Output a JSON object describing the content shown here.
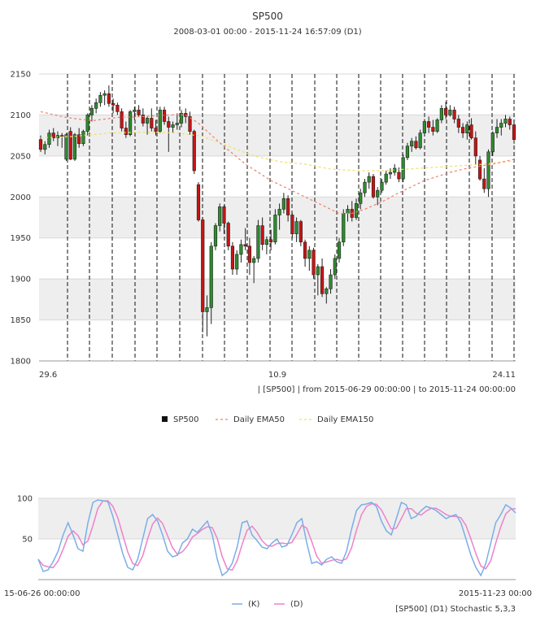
{
  "header": {
    "title": "SP500",
    "subtitle": "2008-03-01 00:00 - 2015-11-24 16:57:09 (D1)"
  },
  "colors": {
    "candle_up": "#2e8b2e",
    "candle_down": "#c81414",
    "ema50": "#f08070",
    "ema150": "#f0e060",
    "stoch_k": "#7aaee8",
    "stoch_d": "#ee82c8",
    "band": "#eeeeee"
  },
  "chart_data": [
    {
      "type": "candlestick",
      "yticks": [
        1800,
        1850,
        1900,
        1950,
        2000,
        2050,
        2100,
        2150
      ],
      "ylim": [
        1800,
        2150
      ],
      "xtick_labels": [
        "29.6",
        "10.9",
        "24.11"
      ],
      "range_note": "| [SP500] | from 2015-06-29 00:00:00 | to 2015-11-24 00:00:00",
      "legend": [
        "SP500",
        "Daily EMA50",
        "Daily EMA150"
      ],
      "ohlc": [
        [
          2070,
          2075,
          2055,
          2058
        ],
        [
          2058,
          2068,
          2052,
          2064
        ],
        [
          2064,
          2082,
          2060,
          2078
        ],
        [
          2078,
          2084,
          2068,
          2072
        ],
        [
          2072,
          2080,
          2062,
          2075
        ],
        [
          2075,
          2078,
          2060,
          2074
        ],
        [
          2046,
          2078,
          2044,
          2076
        ],
        [
          2080,
          2085,
          2045,
          2046
        ],
        [
          2046,
          2078,
          2044,
          2076
        ],
        [
          2076,
          2084,
          2060,
          2065
        ],
        [
          2065,
          2082,
          2062,
          2080
        ],
        [
          2080,
          2102,
          2075,
          2100
        ],
        [
          2100,
          2112,
          2092,
          2108
        ],
        [
          2108,
          2120,
          2102,
          2115
        ],
        [
          2115,
          2128,
          2110,
          2124
        ],
        [
          2124,
          2130,
          2112,
          2126
        ],
        [
          2126,
          2136,
          2110,
          2114
        ],
        [
          2114,
          2120,
          2102,
          2112
        ],
        [
          2112,
          2115,
          2100,
          2104
        ],
        [
          2104,
          2108,
          2080,
          2084
        ],
        [
          2084,
          2092,
          2072,
          2076
        ],
        [
          2076,
          2106,
          2074,
          2104
        ],
        [
          2104,
          2110,
          2094,
          2106
        ],
        [
          2106,
          2112,
          2098,
          2100
        ],
        [
          2100,
          2108,
          2086,
          2090
        ],
        [
          2090,
          2098,
          2076,
          2096
        ],
        [
          2096,
          2108,
          2080,
          2084
        ],
        [
          2084,
          2094,
          2075,
          2080
        ],
        [
          2080,
          2110,
          2078,
          2106
        ],
        [
          2106,
          2110,
          2088,
          2092
        ],
        [
          2092,
          2098,
          2055,
          2085
        ],
        [
          2085,
          2092,
          2078,
          2088
        ],
        [
          2088,
          2102,
          2082,
          2090
        ],
        [
          2090,
          2106,
          2085,
          2102
        ],
        [
          2102,
          2108,
          2090,
          2098
        ],
        [
          2098,
          2104,
          2076,
          2080
        ],
        [
          2080,
          2082,
          2028,
          2032
        ],
        [
          2015,
          2018,
          1970,
          1972
        ],
        [
          1972,
          1975,
          1835,
          1860
        ],
        [
          1860,
          1880,
          1830,
          1865
        ],
        [
          1865,
          1945,
          1845,
          1940
        ],
        [
          1940,
          1968,
          1935,
          1965
        ],
        [
          1965,
          1992,
          1958,
          1988
        ],
        [
          1988,
          1990,
          1955,
          1968
        ],
        [
          1968,
          1970,
          1935,
          1940
        ],
        [
          1940,
          1945,
          1905,
          1912
        ],
        [
          1912,
          1935,
          1905,
          1930
        ],
        [
          1930,
          1948,
          1920,
          1942
        ],
        [
          1942,
          1962,
          1935,
          1940
        ],
        [
          1940,
          1950,
          1905,
          1920
        ],
        [
          1920,
          1928,
          1895,
          1925
        ],
        [
          1925,
          1972,
          1920,
          1965
        ],
        [
          1965,
          1975,
          1935,
          1942
        ],
        [
          1942,
          1952,
          1930,
          1948
        ],
        [
          1948,
          1960,
          1935,
          1945
        ],
        [
          1945,
          1985,
          1942,
          1978
        ],
        [
          1978,
          1992,
          1960,
          1985
        ],
        [
          1985,
          2005,
          1980,
          1998
        ],
        [
          1998,
          2002,
          1970,
          1978
        ],
        [
          1978,
          1980,
          1950,
          1955
        ],
        [
          1955,
          1975,
          1945,
          1970
        ],
        [
          1970,
          1972,
          1940,
          1945
        ],
        [
          1945,
          1948,
          1915,
          1925
        ],
        [
          1925,
          1940,
          1910,
          1935
        ],
        [
          1935,
          1938,
          1900,
          1905
        ],
        [
          1905,
          1918,
          1880,
          1915
        ],
        [
          1915,
          1925,
          1878,
          1882
        ],
        [
          1882,
          1890,
          1870,
          1888
        ],
        [
          1888,
          1912,
          1882,
          1905
        ],
        [
          1905,
          1930,
          1900,
          1925
        ],
        [
          1925,
          1950,
          1920,
          1945
        ],
        [
          1945,
          1985,
          1940,
          1980
        ],
        [
          1980,
          1990,
          1970,
          1985
        ],
        [
          1985,
          1995,
          1970,
          1975
        ],
        [
          1975,
          1998,
          1972,
          1992
        ],
        [
          1992,
          2010,
          1985,
          2005
        ],
        [
          2005,
          2022,
          2000,
          2018
        ],
        [
          2018,
          2030,
          2010,
          2025
        ],
        [
          2025,
          2028,
          1998,
          2000
        ],
        [
          2000,
          2012,
          1990,
          2008
        ],
        [
          2008,
          2022,
          2005,
          2018
        ],
        [
          2018,
          2032,
          2015,
          2028
        ],
        [
          2028,
          2035,
          2022,
          2030
        ],
        [
          2030,
          2040,
          2026,
          2035
        ],
        [
          2030,
          2036,
          2018,
          2022
        ],
        [
          2022,
          2052,
          2018,
          2048
        ],
        [
          2048,
          2066,
          2045,
          2062
        ],
        [
          2062,
          2072,
          2055,
          2068
        ],
        [
          2068,
          2074,
          2058,
          2060
        ],
        [
          2060,
          2082,
          2058,
          2078
        ],
        [
          2078,
          2095,
          2075,
          2092
        ],
        [
          2092,
          2098,
          2078,
          2085
        ],
        [
          2085,
          2094,
          2075,
          2080
        ],
        [
          2080,
          2096,
          2078,
          2094
        ],
        [
          2094,
          2112,
          2090,
          2108
        ],
        [
          2108,
          2116,
          2095,
          2100
        ],
        [
          2100,
          2112,
          2098,
          2106
        ],
        [
          2106,
          2110,
          2090,
          2095
        ],
        [
          2095,
          2100,
          2078,
          2085
        ],
        [
          2085,
          2090,
          2072,
          2078
        ],
        [
          2078,
          2092,
          2070,
          2088
        ],
        [
          2088,
          2096,
          2070,
          2072
        ],
        [
          2072,
          2080,
          2040,
          2050
        ],
        [
          2045,
          2050,
          2020,
          2022
        ],
        [
          2022,
          2035,
          2005,
          2010
        ],
        [
          2010,
          2058,
          2000,
          2055
        ],
        [
          2055,
          2080,
          2050,
          2078
        ],
        [
          2078,
          2095,
          2072,
          2085
        ],
        [
          2085,
          2095,
          2075,
          2090
        ],
        [
          2090,
          2100,
          2085,
          2095
        ],
        [
          2095,
          2098,
          2082,
          2088
        ],
        [
          2088,
          2092,
          2065,
          2070
        ]
      ],
      "ema50": [
        [
          0,
          2104
        ],
        [
          6,
          2097
        ],
        [
          12,
          2093
        ],
        [
          18,
          2097
        ],
        [
          24,
          2098
        ],
        [
          30,
          2100
        ],
        [
          34,
          2100
        ],
        [
          37,
          2090
        ],
        [
          42,
          2066
        ],
        [
          48,
          2040
        ],
        [
          54,
          2020
        ],
        [
          60,
          2005
        ],
        [
          66,
          1990
        ],
        [
          70,
          1980
        ],
        [
          73,
          1980
        ],
        [
          76,
          1985
        ],
        [
          80,
          1994
        ],
        [
          84,
          2005
        ],
        [
          90,
          2020
        ],
        [
          96,
          2030
        ],
        [
          100,
          2035
        ],
        [
          106,
          2040
        ],
        [
          111,
          2046
        ]
      ],
      "ema150": [
        [
          0,
          2072
        ],
        [
          8,
          2074
        ],
        [
          16,
          2078
        ],
        [
          24,
          2079
        ],
        [
          32,
          2078
        ],
        [
          38,
          2074
        ],
        [
          44,
          2062
        ],
        [
          50,
          2050
        ],
        [
          56,
          2043
        ],
        [
          62,
          2040
        ],
        [
          68,
          2034
        ],
        [
          74,
          2032
        ],
        [
          80,
          2032
        ],
        [
          86,
          2034
        ],
        [
          92,
          2036
        ],
        [
          98,
          2038
        ],
        [
          104,
          2040
        ],
        [
          111,
          2044
        ]
      ]
    },
    {
      "type": "line",
      "yticks": [
        50,
        100
      ],
      "ylim": [
        0,
        100
      ],
      "xtick_labels": [
        "15-06-26 00:00:00",
        "2015-11-23 00:00"
      ],
      "legend": [
        "(K)",
        "(D)"
      ],
      "indicator_label": "[SP500] (D1) Stochastic 5,3,3",
      "k": [
        25,
        10,
        12,
        22,
        35,
        55,
        70,
        55,
        38,
        35,
        70,
        95,
        98,
        97,
        96,
        78,
        55,
        32,
        15,
        12,
        25,
        50,
        75,
        80,
        72,
        55,
        35,
        28,
        30,
        45,
        50,
        62,
        58,
        65,
        72,
        55,
        25,
        5,
        10,
        20,
        40,
        70,
        72,
        55,
        48,
        40,
        38,
        45,
        50,
        40,
        42,
        55,
        70,
        75,
        45,
        20,
        22,
        18,
        25,
        28,
        22,
        20,
        35,
        62,
        85,
        92,
        93,
        95,
        90,
        72,
        60,
        55,
        75,
        95,
        92,
        75,
        78,
        85,
        90,
        88,
        85,
        80,
        75,
        78,
        80,
        70,
        50,
        30,
        15,
        5,
        20,
        45,
        70,
        80,
        92,
        88,
        82
      ]
    }
  ]
}
